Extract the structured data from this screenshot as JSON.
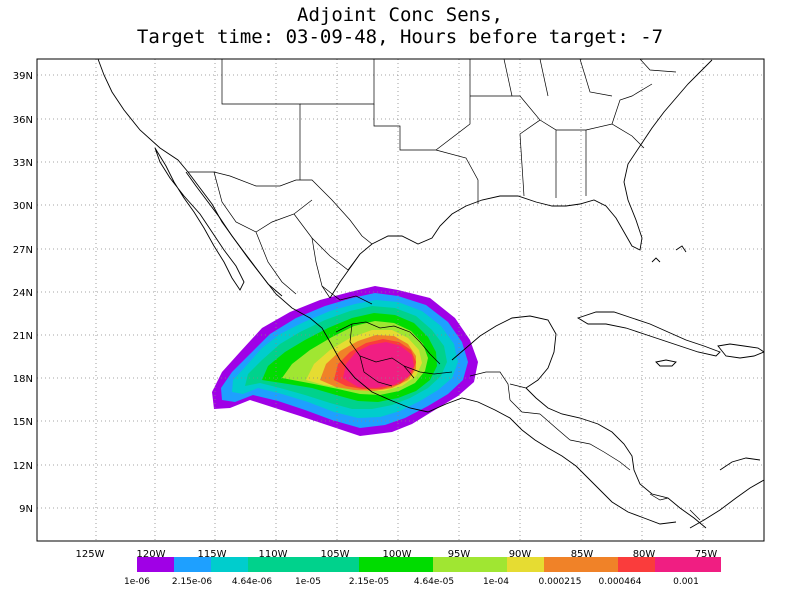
{
  "title": {
    "line1": "Adjoint Conc Sens,",
    "line2": "Target time: 03-09-48, Hours before target: -7"
  },
  "map": {
    "lat_labels": [
      "39N",
      "36N",
      "33N",
      "30N",
      "27N",
      "24N",
      "21N",
      "18N",
      "15N",
      "12N",
      "9N"
    ],
    "lon_labels": [
      "125W",
      "120W",
      "115W",
      "110W",
      "105W",
      "100W",
      "95W",
      "90W",
      "85W",
      "80W",
      "75W"
    ],
    "gridlines": "dotted",
    "region": "Mexico, Central America, southern United States, Caribbean"
  },
  "colorbar": {
    "labels": [
      "1e-06",
      "2.15e-06",
      "4.64e-06",
      "1e-05",
      "2.15e-05",
      "4.64e-05",
      "1e-04",
      "0.000215",
      "0.000464",
      "0.001"
    ],
    "colors": [
      "#a000e6",
      "#1ea0ff",
      "#00cdcd",
      "#00d28c",
      "#00dc00",
      "#a0e632",
      "#e6dc32",
      "#f08228",
      "#fa3c3c",
      "#f01e82"
    ]
  }
}
